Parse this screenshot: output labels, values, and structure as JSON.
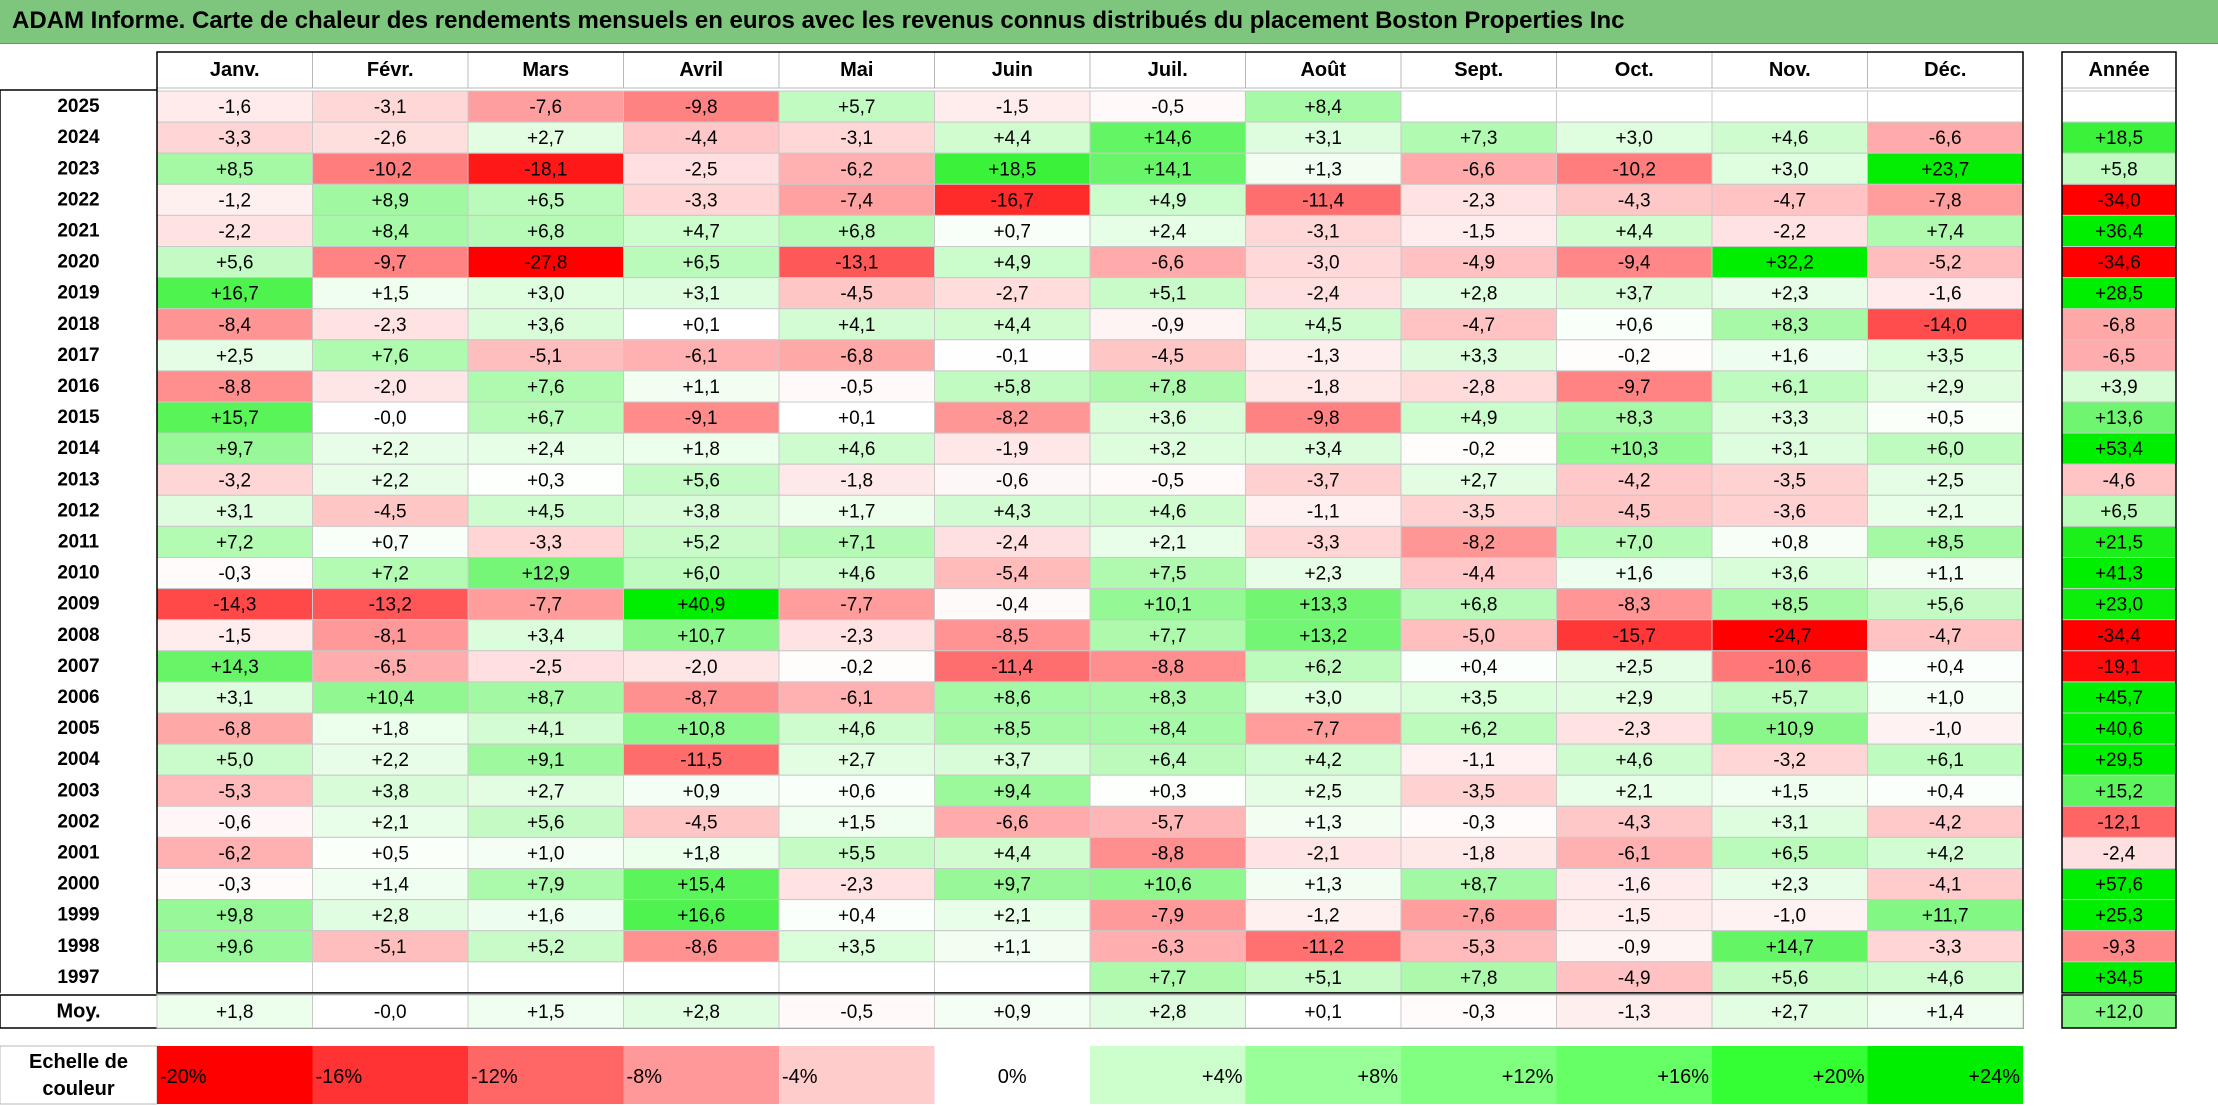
{
  "title": "ADAM Informe. Carte de chaleur des rendements mensuels en euros avec les revenus connus distribués du placement Boston Properties Inc",
  "chart_data": {
    "type": "heatmap",
    "title": "ADAM Informe. Carte de chaleur des rendements mensuels en euros avec les revenus connus distribués du placement Boston Properties Inc",
    "columns": [
      "Janv.",
      "Févr.",
      "Mars",
      "Avril",
      "Mai",
      "Juin",
      "Juil.",
      "Août",
      "Sept.",
      "Oct.",
      "Nov.",
      "Déc."
    ],
    "year_column": "Année",
    "avg_label": "Moy.",
    "rows": [
      {
        "year": "2025",
        "months": [
          "-1,6",
          "-3,1",
          "-7,6",
          "-9,8",
          "+5,7",
          "-1,5",
          "-0,5",
          "+8,4",
          "",
          "",
          "",
          ""
        ],
        "annual": ""
      },
      {
        "year": "2024",
        "months": [
          "-3,3",
          "-2,6",
          "+2,7",
          "-4,4",
          "-3,1",
          "+4,4",
          "+14,6",
          "+3,1",
          "+7,3",
          "+3,0",
          "+4,6",
          "-6,6"
        ],
        "annual": "+18,5"
      },
      {
        "year": "2023",
        "months": [
          "+8,5",
          "-10,2",
          "-18,1",
          "-2,5",
          "-6,2",
          "+18,5",
          "+14,1",
          "+1,3",
          "-6,6",
          "-10,2",
          "+3,0",
          "+23,7"
        ],
        "annual": "+5,8"
      },
      {
        "year": "2022",
        "months": [
          "-1,2",
          "+8,9",
          "+6,5",
          "-3,3",
          "-7,4",
          "-16,7",
          "+4,9",
          "-11,4",
          "-2,3",
          "-4,3",
          "-4,7",
          "-7,8"
        ],
        "annual": "-34,0"
      },
      {
        "year": "2021",
        "months": [
          "-2,2",
          "+8,4",
          "+6,8",
          "+4,7",
          "+6,8",
          "+0,7",
          "+2,4",
          "-3,1",
          "-1,5",
          "+4,4",
          "-2,2",
          "+7,4"
        ],
        "annual": "+36,4"
      },
      {
        "year": "2020",
        "months": [
          "+5,6",
          "-9,7",
          "-27,8",
          "+6,5",
          "-13,1",
          "+4,9",
          "-6,6",
          "-3,0",
          "-4,9",
          "-9,4",
          "+32,2",
          "-5,2"
        ],
        "annual": "-34,6"
      },
      {
        "year": "2019",
        "months": [
          "+16,7",
          "+1,5",
          "+3,0",
          "+3,1",
          "-4,5",
          "-2,7",
          "+5,1",
          "-2,4",
          "+2,8",
          "+3,7",
          "+2,3",
          "-1,6"
        ],
        "annual": "+28,5"
      },
      {
        "year": "2018",
        "months": [
          "-8,4",
          "-2,3",
          "+3,6",
          "+0,1",
          "+4,1",
          "+4,4",
          "-0,9",
          "+4,5",
          "-4,7",
          "+0,6",
          "+8,3",
          "-14,0"
        ],
        "annual": "-6,8"
      },
      {
        "year": "2017",
        "months": [
          "+2,5",
          "+7,6",
          "-5,1",
          "-6,1",
          "-6,8",
          "-0,1",
          "-4,5",
          "-1,3",
          "+3,3",
          "-0,2",
          "+1,6",
          "+3,5"
        ],
        "annual": "-6,5"
      },
      {
        "year": "2016",
        "months": [
          "-8,8",
          "-2,0",
          "+7,6",
          "+1,1",
          "-0,5",
          "+5,8",
          "+7,8",
          "-1,8",
          "-2,8",
          "-9,7",
          "+6,1",
          "+2,9"
        ],
        "annual": "+3,9"
      },
      {
        "year": "2015",
        "months": [
          "+15,7",
          "-0,0",
          "+6,7",
          "-9,1",
          "+0,1",
          "-8,2",
          "+3,6",
          "-9,8",
          "+4,9",
          "+8,3",
          "+3,3",
          "+0,5"
        ],
        "annual": "+13,6"
      },
      {
        "year": "2014",
        "months": [
          "+9,7",
          "+2,2",
          "+2,4",
          "+1,8",
          "+4,6",
          "-1,9",
          "+3,2",
          "+3,4",
          "-0,2",
          "+10,3",
          "+3,1",
          "+6,0"
        ],
        "annual": "+53,4"
      },
      {
        "year": "2013",
        "months": [
          "-3,2",
          "+2,2",
          "+0,3",
          "+5,6",
          "-1,8",
          "-0,6",
          "-0,5",
          "-3,7",
          "+2,7",
          "-4,2",
          "-3,5",
          "+2,5"
        ],
        "annual": "-4,6"
      },
      {
        "year": "2012",
        "months": [
          "+3,1",
          "-4,5",
          "+4,5",
          "+3,8",
          "+1,7",
          "+4,3",
          "+4,6",
          "-1,1",
          "-3,5",
          "-4,5",
          "-3,6",
          "+2,1"
        ],
        "annual": "+6,5"
      },
      {
        "year": "2011",
        "months": [
          "+7,2",
          "+0,7",
          "-3,3",
          "+5,2",
          "+7,1",
          "-2,4",
          "+2,1",
          "-3,3",
          "-8,2",
          "+7,0",
          "+0,8",
          "+8,5"
        ],
        "annual": "+21,5"
      },
      {
        "year": "2010",
        "months": [
          "-0,3",
          "+7,2",
          "+12,9",
          "+6,0",
          "+4,6",
          "-5,4",
          "+7,5",
          "+2,3",
          "-4,4",
          "+1,6",
          "+3,6",
          "+1,1"
        ],
        "annual": "+41,3"
      },
      {
        "year": "2009",
        "months": [
          "-14,3",
          "-13,2",
          "-7,7",
          "+40,9",
          "-7,7",
          "-0,4",
          "+10,1",
          "+13,3",
          "+6,8",
          "-8,3",
          "+8,5",
          "+5,6"
        ],
        "annual": "+23,0"
      },
      {
        "year": "2008",
        "months": [
          "-1,5",
          "-8,1",
          "+3,4",
          "+10,7",
          "-2,3",
          "-8,5",
          "+7,7",
          "+13,2",
          "-5,0",
          "-15,7",
          "-24,7",
          "-4,7"
        ],
        "annual": "-34,4"
      },
      {
        "year": "2007",
        "months": [
          "+14,3",
          "-6,5",
          "-2,5",
          "-2,0",
          "-0,2",
          "-11,4",
          "-8,8",
          "+6,2",
          "+0,4",
          "+2,5",
          "-10,6",
          "+0,4"
        ],
        "annual": "-19,1"
      },
      {
        "year": "2006",
        "months": [
          "+3,1",
          "+10,4",
          "+8,7",
          "-8,7",
          "-6,1",
          "+8,6",
          "+8,3",
          "+3,0",
          "+3,5",
          "+2,9",
          "+5,7",
          "+1,0"
        ],
        "annual": "+45,7"
      },
      {
        "year": "2005",
        "months": [
          "-6,8",
          "+1,8",
          "+4,1",
          "+10,8",
          "+4,6",
          "+8,5",
          "+8,4",
          "-7,7",
          "+6,2",
          "-2,3",
          "+10,9",
          "-1,0"
        ],
        "annual": "+40,6"
      },
      {
        "year": "2004",
        "months": [
          "+5,0",
          "+2,2",
          "+9,1",
          "-11,5",
          "+2,7",
          "+3,7",
          "+6,4",
          "+4,2",
          "-1,1",
          "+4,6",
          "-3,2",
          "+6,1"
        ],
        "annual": "+29,5"
      },
      {
        "year": "2003",
        "months": [
          "-5,3",
          "+3,8",
          "+2,7",
          "+0,9",
          "+0,6",
          "+9,4",
          "+0,3",
          "+2,5",
          "-3,5",
          "+2,1",
          "+1,5",
          "+0,4"
        ],
        "annual": "+15,2"
      },
      {
        "year": "2002",
        "months": [
          "-0,6",
          "+2,1",
          "+5,6",
          "-4,5",
          "+1,5",
          "-6,6",
          "-5,7",
          "+1,3",
          "-0,3",
          "-4,3",
          "+3,1",
          "-4,2"
        ],
        "annual": "-12,1"
      },
      {
        "year": "2001",
        "months": [
          "-6,2",
          "+0,5",
          "+1,0",
          "+1,8",
          "+5,5",
          "+4,4",
          "-8,8",
          "-2,1",
          "-1,8",
          "-6,1",
          "+6,5",
          "+4,2"
        ],
        "annual": "-2,4"
      },
      {
        "year": "2000",
        "months": [
          "-0,3",
          "+1,4",
          "+7,9",
          "+15,4",
          "-2,3",
          "+9,7",
          "+10,6",
          "+1,3",
          "+8,7",
          "-1,6",
          "+2,3",
          "-4,1"
        ],
        "annual": "+57,6"
      },
      {
        "year": "1999",
        "months": [
          "+9,8",
          "+2,8",
          "+1,6",
          "+16,6",
          "+0,4",
          "+2,1",
          "-7,9",
          "-1,2",
          "-7,6",
          "-1,5",
          "-1,0",
          "+11,7"
        ],
        "annual": "+25,3"
      },
      {
        "year": "1998",
        "months": [
          "+9,6",
          "-5,1",
          "+5,2",
          "-8,6",
          "+3,5",
          "+1,1",
          "-6,3",
          "-11,2",
          "-5,3",
          "-0,9",
          "+14,7",
          "-3,3"
        ],
        "annual": "-9,3"
      },
      {
        "year": "1997",
        "months": [
          "",
          "",
          "",
          "",
          "",
          "",
          "+7,7",
          "+5,1",
          "+7,8",
          "-4,9",
          "+5,6",
          "+4,6"
        ],
        "annual": "+34,5"
      }
    ],
    "average": {
      "months": [
        "+1,8",
        "-0,0",
        "+1,5",
        "+2,8",
        "-0,5",
        "+0,9",
        "+2,8",
        "+0,1",
        "-0,3",
        "-1,3",
        "+2,7",
        "+1,4"
      ],
      "annual": "+12,0"
    },
    "scale_label": [
      "Echelle de",
      "couleur"
    ],
    "scale": [
      {
        "label": "-20%",
        "color": "#ff0000"
      },
      {
        "label": "-16%",
        "color": "#ff3333"
      },
      {
        "label": "-12%",
        "color": "#ff6666"
      },
      {
        "label": "-8%",
        "color": "#ff9999"
      },
      {
        "label": "-4%",
        "color": "#ffcccc"
      },
      {
        "label": "0%",
        "color": "#ffffff"
      },
      {
        "label": "+4%",
        "color": "#ccffcc"
      },
      {
        "label": "+8%",
        "color": "#99ff99"
      },
      {
        "label": "+12%",
        "color": "#80ff80"
      },
      {
        "label": "+16%",
        "color": "#66ff66"
      },
      {
        "label": "+20%",
        "color": "#33ff33"
      },
      {
        "label": "+24%",
        "color": "#00ee00"
      }
    ],
    "colors": {
      "negative_max": "#ff0000",
      "positive_max": "#00ee00",
      "neutral": "#ffffff",
      "title_bar": "#7ec57e"
    }
  }
}
